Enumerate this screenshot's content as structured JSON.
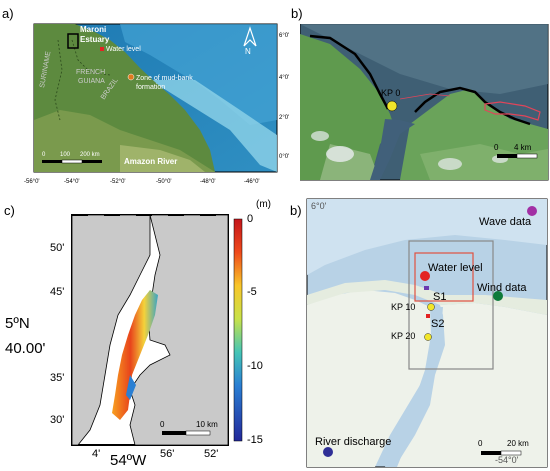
{
  "panel_a": {
    "label": "a)",
    "places": {
      "maroni": "Maroni",
      "estuary": "Estuary",
      "water_level": "Water level",
      "zone_1": "Zone of mud-bank",
      "zone_2": "formation",
      "suriname": "SURINAME",
      "french": "FRENCH",
      "guiana": "GUIANA",
      "brazil": "BRAZIL",
      "amazon": "Amazon River"
    },
    "scale": [
      "0",
      "100",
      "200 km"
    ],
    "lon_ticks": [
      "-56°0'",
      "-54°0'",
      "-52°0'",
      "-50°0'",
      "-48°0'",
      "-46°0'"
    ],
    "lat_ticks": [
      "6°0'",
      "4°0'",
      "2°0'",
      "0°0'"
    ],
    "compass": "N"
  },
  "panel_b1": {
    "label": "b)",
    "kp0": "KP 0",
    "scale": [
      "0",
      "4 km"
    ]
  },
  "panel_c": {
    "label": "c)",
    "colorbar_title": "(m)",
    "colorbar_ticks": [
      "0",
      "-5",
      "-10",
      "-15"
    ],
    "lat_ticks": [
      "50'",
      "45'",
      "40.00'",
      "35'",
      "30'"
    ],
    "lat_main": "5ºN",
    "lon_ticks": [
      "4'",
      "56'",
      "52'"
    ],
    "lon_main": "54ºW",
    "scale": [
      "0",
      "10 km"
    ]
  },
  "panel_b2": {
    "label": "b)",
    "corner_lat": "6°0'",
    "corner_lon": "-54°0'",
    "wave": "Wave data",
    "water_level": "Water level",
    "wind": "Wind data",
    "s1": "S1",
    "s2": "S2",
    "kp10": "KP 10",
    "kp20": "KP 20",
    "river": "River discharge",
    "scale": [
      "0",
      "20 km"
    ],
    "colors": {
      "wave": "#a22fa5",
      "water_level": "#e32323",
      "wind": "#0e7a3a",
      "river": "#2f2f96",
      "kp": "#f2e62a"
    }
  }
}
